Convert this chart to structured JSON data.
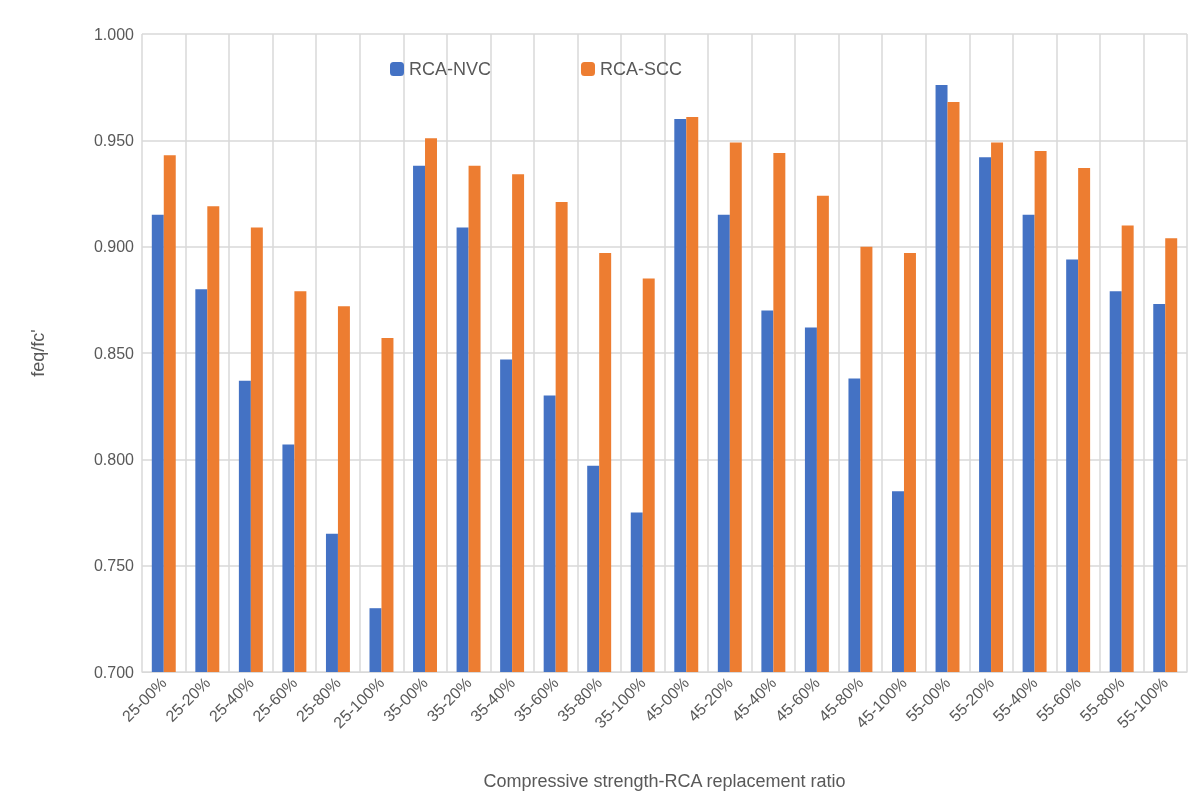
{
  "chart_data": {
    "type": "bar",
    "xlabel": "Compressive strength-RCA replacement ratio",
    "ylabel": "feq/fc'",
    "categories": [
      "25-00%",
      "25-20%",
      "25-40%",
      "25-60%",
      "25-80%",
      "25-100%",
      "35-00%",
      "35-20%",
      "35-40%",
      "35-60%",
      "35-80%",
      "35-100%",
      "45-00%",
      "45-20%",
      "45-40%",
      "45-60%",
      "45-80%",
      "45-100%",
      "55-00%",
      "55-20%",
      "55-40%",
      "55-60%",
      "55-80%",
      "55-100%"
    ],
    "series": [
      {
        "name": "RCA-NVC",
        "color": "#4472c4",
        "values": [
          0.915,
          0.88,
          0.837,
          0.807,
          0.765,
          0.73,
          0.938,
          0.909,
          0.847,
          0.83,
          0.797,
          0.775,
          0.96,
          0.915,
          0.87,
          0.862,
          0.838,
          0.785,
          0.976,
          0.942,
          0.915,
          0.894,
          0.879,
          0.873
        ]
      },
      {
        "name": "RCA-SCC",
        "color": "#ed7d31",
        "values": [
          0.943,
          0.919,
          0.909,
          0.879,
          0.872,
          0.857,
          0.951,
          0.938,
          0.934,
          0.921,
          0.897,
          0.885,
          0.961,
          0.949,
          0.944,
          0.924,
          0.9,
          0.897,
          0.968,
          0.949,
          0.945,
          0.937,
          0.91,
          0.904
        ]
      }
    ],
    "ylim": [
      0.7,
      1.0
    ],
    "yticks": [
      {
        "value": 0.7,
        "label": "0.700"
      },
      {
        "value": 0.75,
        "label": "0.750"
      },
      {
        "value": 0.8,
        "label": "0.800"
      },
      {
        "value": 0.85,
        "label": "0.850"
      },
      {
        "value": 0.9,
        "label": "0.900"
      },
      {
        "value": 0.95,
        "label": "0.950"
      },
      {
        "value": 1.0,
        "label": "1.000"
      }
    ],
    "grid": true,
    "legend": "top"
  }
}
